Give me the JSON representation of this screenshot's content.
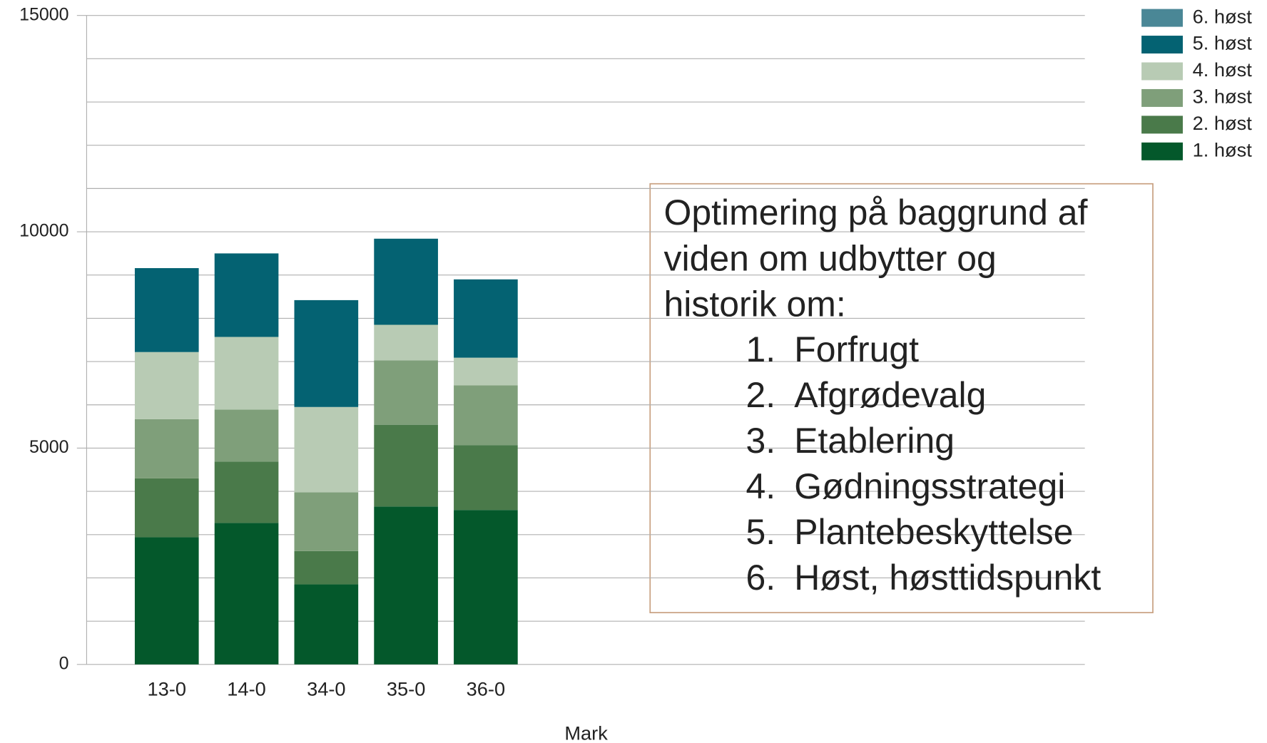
{
  "chart_data": {
    "type": "stacked_bar",
    "x_label": "Mark",
    "categories": [
      "13-0",
      "14-0",
      "34-0",
      "35-0",
      "36-0"
    ],
    "series": [
      {
        "name": "1. høst",
        "color": "#04582b",
        "values": [
          2940,
          3270,
          1850,
          3650,
          3570
        ]
      },
      {
        "name": "2. høst",
        "color": "#4a7a4a",
        "values": [
          1360,
          1420,
          770,
          1890,
          1500
        ]
      },
      {
        "name": "3. høst",
        "color": "#7f9f7a",
        "values": [
          1370,
          1200,
          1360,
          1490,
          1380
        ]
      },
      {
        "name": "4. høst",
        "color": "#b8cbb4",
        "values": [
          1550,
          1680,
          1970,
          820,
          640
        ]
      },
      {
        "name": "5. høst",
        "color": "#046272",
        "values": [
          1940,
          1930,
          2470,
          1990,
          1810
        ]
      },
      {
        "name": "6. høst",
        "color": "#4a8796",
        "values": [
          0,
          0,
          0,
          0,
          0
        ]
      }
    ],
    "ylim": [
      0,
      15000
    ],
    "yticks": [
      0,
      5000,
      10000,
      15000
    ],
    "minor_yticks": [
      1000,
      2000,
      3000,
      4000,
      6000,
      7000,
      8000,
      9000,
      11000,
      12000,
      13000,
      14000
    ],
    "grid": true,
    "legend": "top-right",
    "annotation": {
      "lines": [
        "Optimering på baggrund af",
        "viden om udbytter og",
        "historik om:"
      ],
      "items": [
        {
          "number": "1.",
          "text": "Forfrugt"
        },
        {
          "number": "2.",
          "text": "Afgrødevalg"
        },
        {
          "number": "3.",
          "text": "Etablering"
        },
        {
          "number": "4.",
          "text": "Gødningsstrategi"
        },
        {
          "number": "5.",
          "text": "Plantebeskyttelse"
        },
        {
          "number": "6.",
          "text": "Høst, høsttidspunkt"
        }
      ]
    }
  }
}
